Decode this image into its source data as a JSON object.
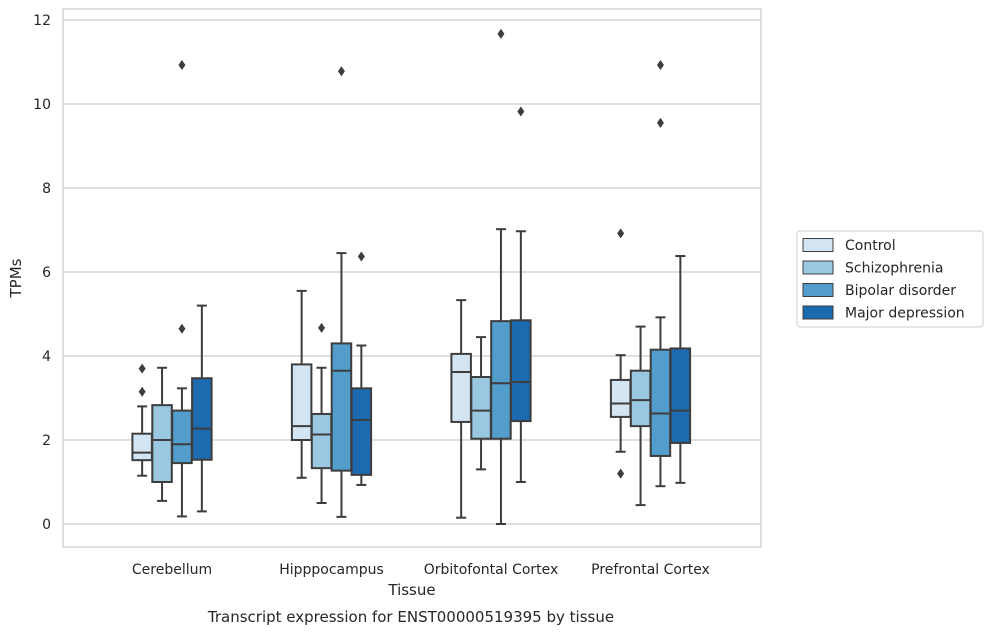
{
  "chart_data": {
    "type": "boxplot",
    "caption": "Transcript expression for ENST00000519395 by tissue",
    "xlabel": "Tissue",
    "ylabel": "TPMs",
    "ylim": [
      -0.55,
      12.25
    ],
    "yticks": [
      0,
      2,
      4,
      6,
      8,
      10,
      12
    ],
    "grid": "horizontal",
    "legend_position": "right",
    "categories": [
      "Cerebellum",
      "Hipppocampus",
      "Orbitofontal Cortex",
      "Prefrontal Cortex"
    ],
    "series": [
      {
        "name": "Control",
        "color": "#d3e4f3",
        "boxes": [
          {
            "whislo": 1.15,
            "q1": 1.52,
            "med": 1.7,
            "q3": 2.15,
            "whishi": 2.8,
            "fliers": [
              3.15,
              3.7
            ]
          },
          {
            "whislo": 1.1,
            "q1": 2.0,
            "med": 2.33,
            "q3": 3.8,
            "whishi": 5.55,
            "fliers": []
          },
          {
            "whislo": 0.15,
            "q1": 2.43,
            "med": 3.62,
            "q3": 4.05,
            "whishi": 5.33,
            "fliers": []
          },
          {
            "whislo": 1.72,
            "q1": 2.55,
            "med": 2.87,
            "q3": 3.43,
            "whishi": 4.02,
            "fliers": [
              1.2,
              6.92
            ]
          }
        ]
      },
      {
        "name": "Schizophrenia",
        "color": "#9ac8e0",
        "boxes": [
          {
            "whislo": 0.55,
            "q1": 1.0,
            "med": 2.0,
            "q3": 2.83,
            "whishi": 3.72,
            "fliers": []
          },
          {
            "whislo": 0.5,
            "q1": 1.33,
            "med": 2.13,
            "q3": 2.62,
            "whishi": 3.72,
            "fliers": [
              4.67
            ]
          },
          {
            "whislo": 1.3,
            "q1": 2.03,
            "med": 2.7,
            "q3": 3.5,
            "whishi": 4.45,
            "fliers": []
          },
          {
            "whislo": 0.45,
            "q1": 2.33,
            "med": 2.95,
            "q3": 3.65,
            "whishi": 4.7,
            "fliers": []
          }
        ]
      },
      {
        "name": "Bipolar disorder",
        "color": "#529dcc",
        "boxes": [
          {
            "whislo": 0.18,
            "q1": 1.45,
            "med": 1.9,
            "q3": 2.7,
            "whishi": 3.23,
            "fliers": [
              4.65,
              10.93
            ]
          },
          {
            "whislo": 0.17,
            "q1": 1.27,
            "med": 3.65,
            "q3": 4.3,
            "whishi": 6.45,
            "fliers": [
              10.78
            ]
          },
          {
            "whislo": 0.0,
            "q1": 2.03,
            "med": 3.35,
            "q3": 4.83,
            "whishi": 7.02,
            "fliers": [
              11.67
            ]
          },
          {
            "whislo": 0.9,
            "q1": 1.62,
            "med": 2.63,
            "q3": 4.15,
            "whishi": 4.92,
            "fliers": [
              9.55,
              10.93
            ]
          }
        ]
      },
      {
        "name": "Major depression",
        "color": "#1c6aaf",
        "boxes": [
          {
            "whislo": 0.3,
            "q1": 1.53,
            "med": 2.27,
            "q3": 3.47,
            "whishi": 5.2,
            "fliers": []
          },
          {
            "whislo": 0.93,
            "q1": 1.17,
            "med": 2.48,
            "q3": 3.23,
            "whishi": 4.25,
            "fliers": [
              6.37
            ]
          },
          {
            "whislo": 1.0,
            "q1": 2.45,
            "med": 3.38,
            "q3": 4.85,
            "whishi": 6.97,
            "fliers": [
              9.82
            ]
          },
          {
            "whislo": 0.98,
            "q1": 1.93,
            "med": 2.7,
            "q3": 4.18,
            "whishi": 6.38,
            "fliers": []
          }
        ]
      }
    ]
  }
}
